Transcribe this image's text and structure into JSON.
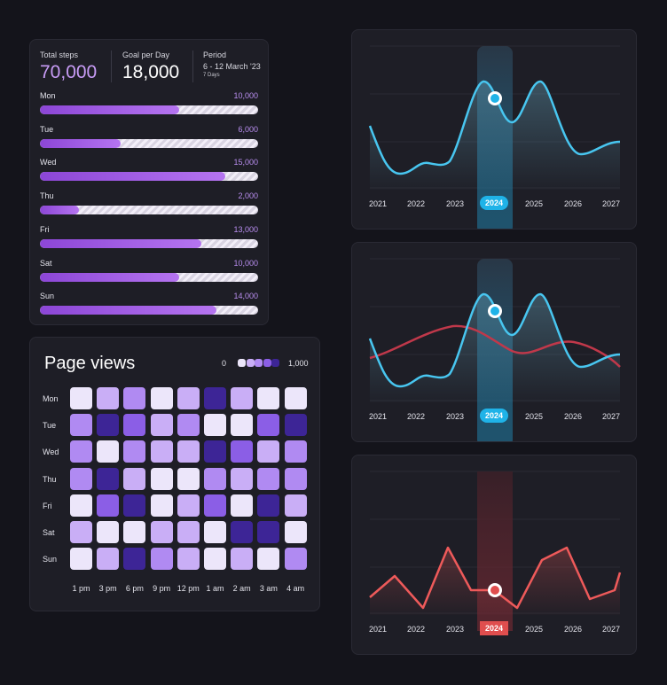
{
  "steps": {
    "total_label": "Total steps",
    "total_value": "70,000",
    "goal_label": "Goal per Day",
    "goal_value": "18,000",
    "period_label": "Period",
    "period_value": "6 - 12 March '23",
    "period_days": "7 Days",
    "days": [
      {
        "label": "Mon",
        "value_text": "10,000",
        "fill": 0.64
      },
      {
        "label": "Tue",
        "value_text": "6,000",
        "fill": 0.37
      },
      {
        "label": "Wed",
        "value_text": "15,000",
        "fill": 0.85
      },
      {
        "label": "Thu",
        "value_text": "2,000",
        "fill": 0.18
      },
      {
        "label": "Fri",
        "value_text": "13,000",
        "fill": 0.74
      },
      {
        "label": "Sat",
        "value_text": "10,000",
        "fill": 0.64
      },
      {
        "label": "Sun",
        "value_text": "14,000",
        "fill": 0.81
      }
    ]
  },
  "page_views": {
    "title": "Page views",
    "legend_min": "0",
    "legend_max": "1,000",
    "legend_colors": [
      "#ece6fa",
      "#c9aef6",
      "#b08af2",
      "#8b5ee6",
      "#3d2596"
    ],
    "rows": [
      "Mon",
      "Tue",
      "Wed",
      "Thu",
      "Fri",
      "Sat",
      "Sun"
    ],
    "columns": [
      "1 pm",
      "3 pm",
      "6 pm",
      "9 pm",
      "12 pm",
      "1 am",
      "2 am",
      "3 am",
      "4 am"
    ],
    "levels": [
      [
        0,
        1,
        2,
        0,
        1,
        4,
        1,
        0,
        0
      ],
      [
        2,
        4,
        3,
        1,
        2,
        0,
        0,
        3,
        4
      ],
      [
        2,
        0,
        2,
        1,
        1,
        4,
        3,
        1,
        2
      ],
      [
        2,
        4,
        1,
        0,
        0,
        2,
        1,
        2,
        2
      ],
      [
        0,
        3,
        4,
        0,
        1,
        3,
        0,
        4,
        1
      ],
      [
        1,
        0,
        0,
        1,
        1,
        0,
        4,
        4,
        0
      ],
      [
        0,
        1,
        4,
        2,
        1,
        0,
        1,
        0,
        2
      ]
    ]
  },
  "year_labels": [
    "2021",
    "2022",
    "2023",
    "2024",
    "2025",
    "2026",
    "2027"
  ],
  "charts": {
    "colors": {
      "cyan": "#3fc1ee",
      "red": "#c0384a",
      "coral": "#ee5a5a",
      "pill_cyan": "#1fb3e8",
      "pill_red": "#e04e4e"
    },
    "selected_year": "2024"
  }
}
